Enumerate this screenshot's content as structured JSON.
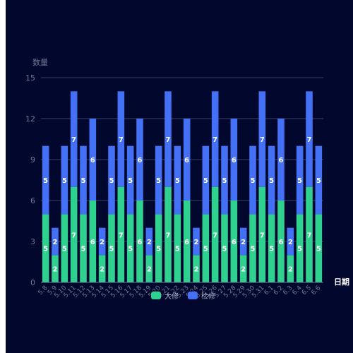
{
  "chart_data": {
    "type": "bar",
    "stacked": true,
    "ylabel": "数量",
    "xlabel": "日期",
    "ylim": [
      0,
      15
    ],
    "yticks": [
      0,
      3,
      6,
      9,
      12,
      15
    ],
    "categories": [
      "5.8",
      "5.9",
      "5.10",
      "5.11",
      "5.12",
      "5.13",
      "5.14",
      "5.15",
      "5.16",
      "5.17",
      "5.18",
      "5.19",
      "5.20",
      "5.21",
      "5.22",
      "5.23",
      "5.24",
      "5.25",
      "5.26",
      "5.27",
      "5.28",
      "5.29",
      "5.30",
      "5.31",
      "6.1",
      "6.2",
      "6.3",
      "6.4",
      "6.5",
      "6.6"
    ],
    "series": [
      {
        "name": "大修",
        "color": "#2fd18f",
        "values": [
          5,
          2,
          5,
          7,
          5,
          6,
          2,
          5,
          7,
          5,
          6,
          2,
          5,
          7,
          5,
          6,
          2,
          5,
          7,
          5,
          6,
          2,
          5,
          7,
          5,
          6,
          2,
          5,
          7,
          5
        ]
      },
      {
        "name": "检修",
        "color": "#4470f5",
        "values": [
          5,
          2,
          5,
          7,
          5,
          6,
          2,
          5,
          7,
          5,
          6,
          2,
          5,
          7,
          5,
          6,
          2,
          5,
          7,
          5,
          6,
          2,
          5,
          7,
          5,
          6,
          2,
          5,
          7,
          5
        ]
      }
    ],
    "grid": true,
    "legend_position": "bottom-center"
  }
}
